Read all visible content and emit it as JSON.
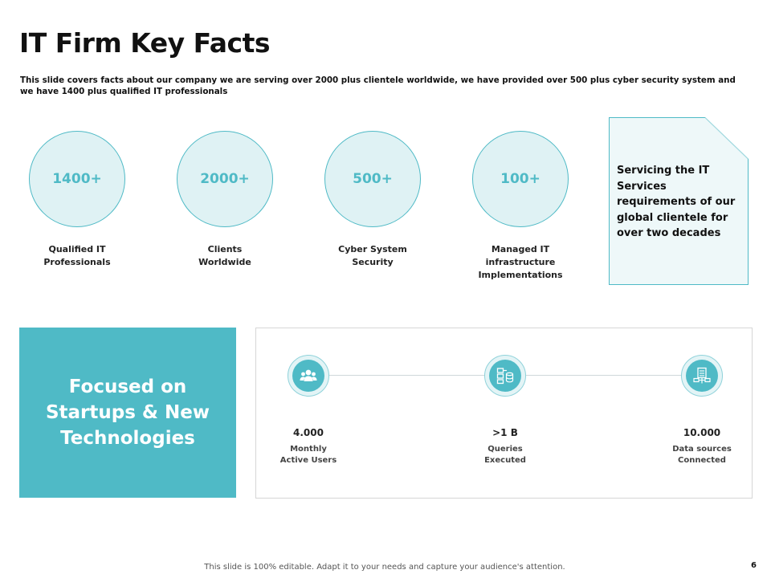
{
  "slide": {
    "title": "IT Firm Key Facts",
    "subtitle": "This slide covers facts about our company we are serving over 2000 plus clientele worldwide,  we have provided over 500 plus cyber security system and we have 1400 plus qualified IT professionals"
  },
  "stats": [
    {
      "value": "1400+",
      "label_line1": "Qualified IT",
      "label_line2": "Professionals"
    },
    {
      "value": "2000+",
      "label_line1": "Clients",
      "label_line2": "Worldwide"
    },
    {
      "value": "500+",
      "label_line1": "Cyber System",
      "label_line2": "Security"
    },
    {
      "value": "100+",
      "label_line1": "Managed IT infrastructure",
      "label_line2": "Implementations"
    }
  ],
  "note": {
    "text": "Servicing the IT Services requirements of our global clientele for over two decades"
  },
  "focus": {
    "text": "Focused on Startups & New Technologies"
  },
  "metrics": [
    {
      "icon": "users-icon",
      "value": "4.000",
      "desc_line1": "Monthly",
      "desc_line2": "Active Users"
    },
    {
      "icon": "database-query-icon",
      "value": ">1 B",
      "desc_line1": "Queries",
      "desc_line2": "Executed"
    },
    {
      "icon": "data-server-icon",
      "value": "10.000",
      "desc_line1": "Data sources",
      "desc_line2": "Connected"
    }
  ],
  "footer": {
    "text": "This slide is 100% editable. Adapt it to your needs and capture your audience's attention.",
    "page_number": "6"
  },
  "colors": {
    "accent": "#4fbac6",
    "circle_fill": "#dff2f4",
    "note_fill": "#eef8f9"
  }
}
